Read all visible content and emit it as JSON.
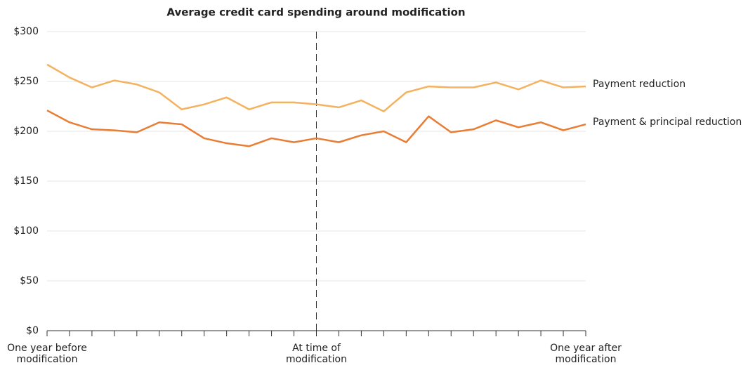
{
  "chart_data": {
    "type": "line",
    "title": "Average credit card spending around modification",
    "categories": [
      "One year before modification",
      null,
      null,
      null,
      null,
      null,
      null,
      null,
      null,
      null,
      null,
      null,
      "At time of modification",
      null,
      null,
      null,
      null,
      null,
      null,
      null,
      null,
      null,
      null,
      null,
      "One year after modification"
    ],
    "series": [
      {
        "name": "Payment reduction",
        "color": "#f5b25e",
        "values": [
          267,
          254,
          244,
          251,
          247,
          239,
          222,
          227,
          234,
          222,
          229,
          229,
          227,
          224,
          231,
          220,
          239,
          245,
          244,
          244,
          249,
          242,
          251,
          244,
          245
        ]
      },
      {
        "name": "Payment & principal reduction",
        "color": "#e87d33",
        "values": [
          221,
          209,
          202,
          201,
          199,
          209,
          207,
          193,
          188,
          185,
          193,
          189,
          193,
          189,
          196,
          200,
          189,
          215,
          199,
          202,
          211,
          204,
          209,
          201,
          207
        ]
      }
    ],
    "ylim": [
      0,
      300
    ],
    "yticks": [
      {
        "value": 0,
        "label": "$0"
      },
      {
        "value": 50,
        "label": "$50"
      },
      {
        "value": 100,
        "label": "$100"
      },
      {
        "value": 150,
        "label": "$150"
      },
      {
        "value": 200,
        "label": "$200"
      },
      {
        "value": 250,
        "label": "$250"
      },
      {
        "value": 300,
        "label": "$300"
      }
    ],
    "grid": true,
    "legend": "line-end",
    "reference_line": {
      "category_index": 12,
      "style": "dashed"
    }
  }
}
